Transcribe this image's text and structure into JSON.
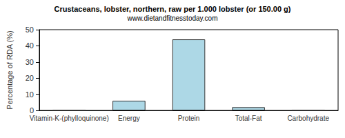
{
  "chart_data": {
    "type": "bar",
    "title": "Crustaceans, lobster, northern, raw per 1.000 lobster (or 150.00 g)",
    "subtitle": "www.dietandfitnesstoday.com",
    "y_label": "Percentage of RDA (%)",
    "categories": [
      "Vitamin-K-(phylloquinone)",
      "Energy",
      "Protein",
      "Total-Fat",
      "Carbohydrate"
    ],
    "values": [
      0,
      6,
      44,
      2,
      0
    ],
    "color": "#add8e6",
    "ylim": [
      0,
      50
    ],
    "yticks": [
      0,
      10,
      20,
      30,
      40,
      50
    ],
    "grid": false
  }
}
